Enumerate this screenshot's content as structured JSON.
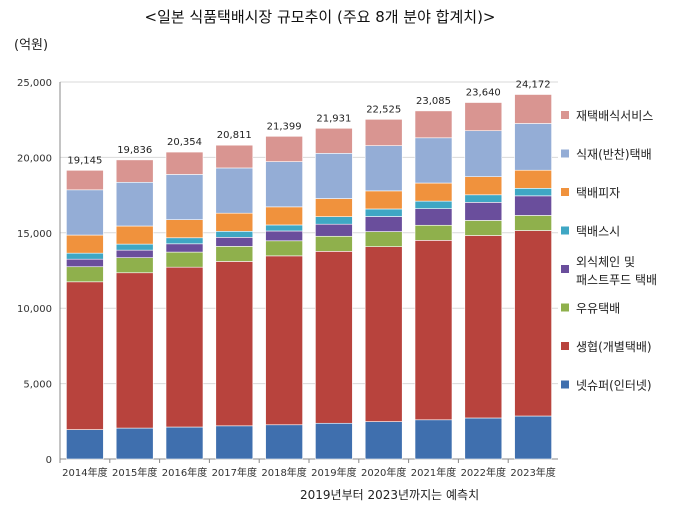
{
  "chart_data": {
    "type": "bar",
    "stacked": true,
    "title": "<일본 식품택배시장 규모추이 (주요 8개 분야 합계치)>",
    "ylabel": "(억원)",
    "note": "2019년부터 2023년까지는 예측치",
    "ylim": [
      0,
      25000
    ],
    "yticks": [
      "0",
      "5,000",
      "10,000",
      "15,000",
      "20,000",
      "25,000"
    ],
    "categories": [
      "2014年度",
      "2015年度",
      "2016年度",
      "2017年度",
      "2018年度",
      "2019年度",
      "2020年度",
      "2021年度",
      "2022年度",
      "2023年度"
    ],
    "totals": [
      "19,145",
      "19,836",
      "20,354",
      "20,811",
      "21,399",
      "21,931",
      "22,525",
      "23,085",
      "23,640",
      "24,172"
    ],
    "legend_position": "right",
    "series": [
      {
        "name": "넷슈퍼(인터넷)",
        "color": "#3f6fae",
        "values": [
          1950,
          2050,
          2120,
          2200,
          2270,
          2370,
          2480,
          2600,
          2720,
          2850
        ]
      },
      {
        "name": "생협(개별택배)",
        "color": "#b8433d",
        "values": [
          9800,
          10300,
          10600,
          10900,
          11200,
          11400,
          11600,
          11900,
          12100,
          12300
        ]
      },
      {
        "name": "우유택배",
        "color": "#8fb04c",
        "values": [
          1000,
          1000,
          1000,
          1000,
          1000,
          1000,
          1000,
          1000,
          1000,
          1000
        ]
      },
      {
        "name": "외식체인 및 패스트푸드 택배",
        "color": "#6a4e9c",
        "values": [
          500,
          500,
          550,
          600,
          650,
          800,
          1000,
          1100,
          1200,
          1300
        ]
      },
      {
        "name": "택배스시",
        "color": "#3fa7c4",
        "values": [
          400,
          400,
          400,
          400,
          400,
          500,
          500,
          500,
          500,
          500
        ]
      },
      {
        "name": "택배피자",
        "color": "#f0923d",
        "values": [
          1200,
          1200,
          1200,
          1200,
          1200,
          1200,
          1200,
          1200,
          1200,
          1200
        ]
      },
      {
        "name": "식재(반찬)택배",
        "color": "#94add6",
        "values": [
          3000,
          2900,
          3000,
          3000,
          3000,
          3000,
          3000,
          3000,
          3050,
          3100
        ]
      },
      {
        "name": "재택배식서비스",
        "color": "#d99591",
        "values": [
          1295,
          1486,
          1484,
          1511,
          1679,
          1661,
          1745,
          1785,
          1870,
          1922
        ]
      }
    ]
  }
}
